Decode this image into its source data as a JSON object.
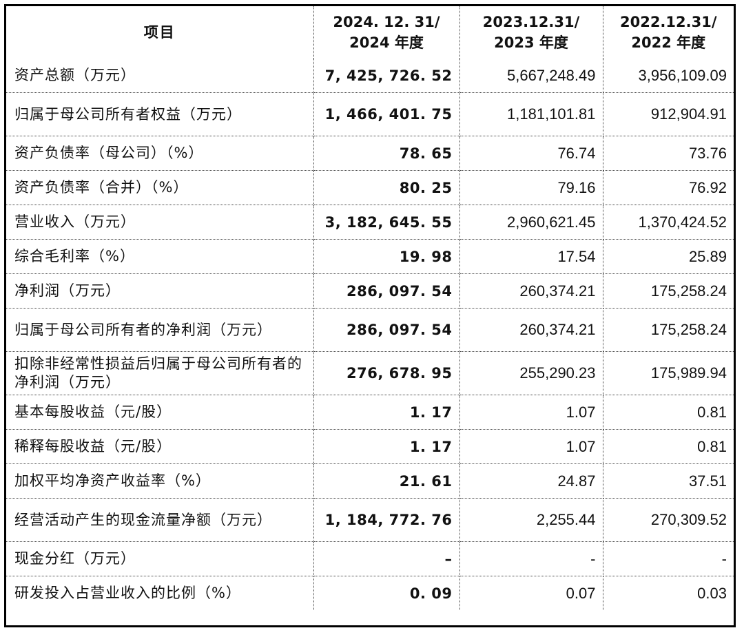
{
  "headers": {
    "item": "项目",
    "col2024": "2024. 12. 31/ 2024 年度",
    "col2023": "2023.12.31/ 2023 年度",
    "col2022": "2022.12.31/ 2022 年度"
  },
  "rows": [
    {
      "label": "资产总额（万元）",
      "v2024": "7, 425, 726. 52",
      "v2023": "5,667,248.49",
      "v2022": "3,956,109.09"
    },
    {
      "label": "归属于母公司所有者权益（万元）",
      "v2024": "1, 466, 401. 75",
      "v2023": "1,181,101.81",
      "v2022": "912,904.91"
    },
    {
      "label": "资产负债率（母公司）（%）",
      "v2024": "78. 65",
      "v2023": "76.74",
      "v2022": "73.76"
    },
    {
      "label": "资产负债率（合并）（%）",
      "v2024": "80. 25",
      "v2023": "79.16",
      "v2022": "76.92"
    },
    {
      "label": "营业收入（万元）",
      "v2024": "3, 182, 645. 55",
      "v2023": "2,960,621.45",
      "v2022": "1,370,424.52"
    },
    {
      "label": "综合毛利率（%）",
      "v2024": "19. 98",
      "v2023": "17.54",
      "v2022": "25.89"
    },
    {
      "label": "净利润（万元）",
      "v2024": "286, 097. 54",
      "v2023": "260,374.21",
      "v2022": "175,258.24"
    },
    {
      "label": "归属于母公司所有者的净利润（万元）",
      "v2024": "286, 097. 54",
      "v2023": "260,374.21",
      "v2022": "175,258.24"
    },
    {
      "label": "扣除非经常性损益后归属于母公司所有者的净利润（万元）",
      "v2024": "276, 678. 95",
      "v2023": "255,290.23",
      "v2022": "175,989.94"
    },
    {
      "label": "基本每股收益（元/股）",
      "v2024": "1. 17",
      "v2023": "1.07",
      "v2022": "0.81"
    },
    {
      "label": "稀释每股收益（元/股）",
      "v2024": "1. 17",
      "v2023": "1.07",
      "v2022": "0.81"
    },
    {
      "label": "加权平均净资产收益率（%）",
      "v2024": "21. 61",
      "v2023": "24.87",
      "v2022": "37.51"
    },
    {
      "label": "经营活动产生的现金流量净额（万元）",
      "v2024": "1, 184, 772. 76",
      "v2023": "2,255.44",
      "v2022": "270,309.52"
    },
    {
      "label": "现金分红（万元）",
      "v2024": "–",
      "v2023": "-",
      "v2022": "-"
    },
    {
      "label": "研发投入占营业收入的比例（%）",
      "v2024": "0. 09",
      "v2023": "0.07",
      "v2022": "0.03"
    }
  ]
}
